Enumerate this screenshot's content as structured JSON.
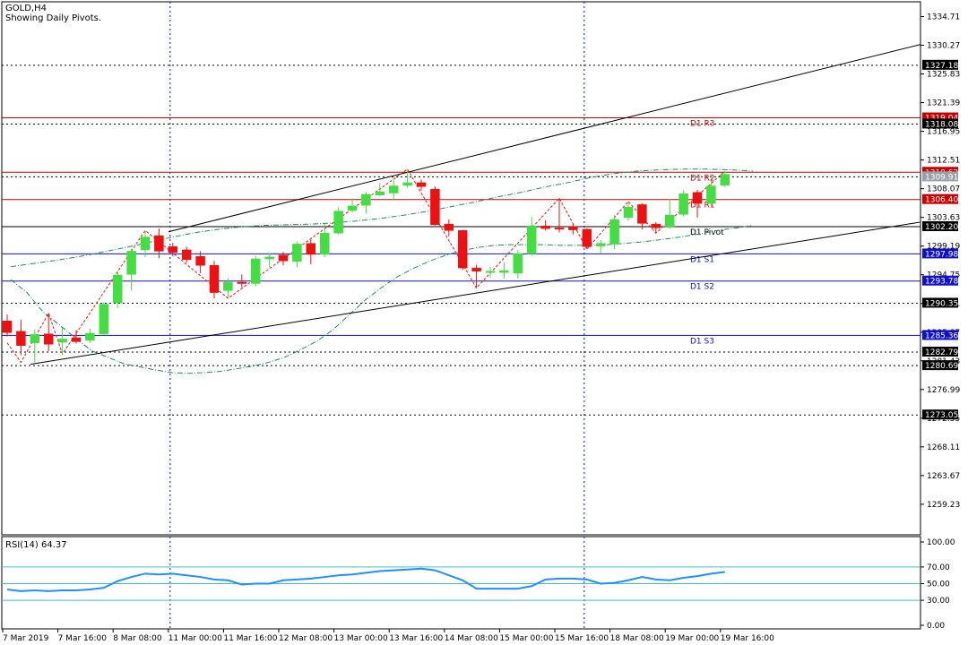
{
  "header": {
    "symbol": "GOLD,H4",
    "subtitle": "Showing Daily Pivots."
  },
  "rsi_panel": {
    "label": "RSI(14) 64.37"
  },
  "colors": {
    "bull": "#44dd44",
    "bear": "#ee1111",
    "pivot_line": "#000000",
    "support_line": "#1010cc",
    "resistance_line": "#cc0000",
    "rsi_line": "#1e90ff",
    "rsi_levels": "#40c0c0",
    "ma_line": "#228b66",
    "zigzag": "#ee1111"
  },
  "chart_data": [
    {
      "type": "candlestick",
      "title": "GOLD,H4",
      "ylim": [
        1254.5,
        1337.0
      ],
      "y_ticks": [
        "1334.71",
        "1330.27",
        "1325.83",
        "1321.39",
        "1316.95",
        "1312.51",
        "1308.07",
        "1303.63",
        "1299.19",
        "1294.75",
        "1290.31",
        "1285.87",
        "1281.43",
        "1276.99",
        "1272.55",
        "1268.11",
        "1263.67",
        "1259.23"
      ],
      "x_labels": [
        "7 Mar 2019",
        "7 Mar 16:00",
        "8 Mar 08:00",
        "11 Mar 00:00",
        "11 Mar 16:00",
        "12 Mar 08:00",
        "13 Mar 00:00",
        "13 Mar 16:00",
        "14 Mar 08:00",
        "15 Mar 00:00",
        "15 Mar 16:00",
        "18 Mar 08:00",
        "19 Mar 00:00",
        "19 Mar 16:00"
      ],
      "candles": [
        {
          "o": 1287.6,
          "h": 1288.6,
          "l": 1285.2,
          "c": 1285.8
        },
        {
          "o": 1286.0,
          "h": 1287.8,
          "l": 1282.3,
          "c": 1283.8
        },
        {
          "o": 1284.2,
          "h": 1286.3,
          "l": 1281.2,
          "c": 1285.5
        },
        {
          "o": 1285.6,
          "h": 1288.8,
          "l": 1282.9,
          "c": 1284.0
        },
        {
          "o": 1284.3,
          "h": 1286.5,
          "l": 1282.5,
          "c": 1284.8
        },
        {
          "o": 1285.0,
          "h": 1286.2,
          "l": 1284.1,
          "c": 1284.4
        },
        {
          "o": 1284.6,
          "h": 1286.4,
          "l": 1284.2,
          "c": 1285.7
        },
        {
          "o": 1285.6,
          "h": 1290.5,
          "l": 1285.5,
          "c": 1290.2
        },
        {
          "o": 1290.4,
          "h": 1295.3,
          "l": 1289.6,
          "c": 1294.7
        },
        {
          "o": 1294.8,
          "h": 1298.8,
          "l": 1292.3,
          "c": 1298.4
        },
        {
          "o": 1298.6,
          "h": 1301.6,
          "l": 1297.5,
          "c": 1300.6
        },
        {
          "o": 1300.8,
          "h": 1301.9,
          "l": 1297.3,
          "c": 1298.4
        },
        {
          "o": 1299.1,
          "h": 1299.7,
          "l": 1297.6,
          "c": 1298.2
        },
        {
          "o": 1298.6,
          "h": 1299.1,
          "l": 1296.6,
          "c": 1297.1
        },
        {
          "o": 1297.6,
          "h": 1298.4,
          "l": 1295.0,
          "c": 1296.2
        },
        {
          "o": 1296.2,
          "h": 1296.9,
          "l": 1291.1,
          "c": 1292.0
        },
        {
          "o": 1292.3,
          "h": 1294.2,
          "l": 1291.2,
          "c": 1293.6
        },
        {
          "o": 1293.6,
          "h": 1294.8,
          "l": 1292.8,
          "c": 1293.4
        },
        {
          "o": 1293.4,
          "h": 1297.7,
          "l": 1293.0,
          "c": 1297.2
        },
        {
          "o": 1297.2,
          "h": 1298.1,
          "l": 1295.9,
          "c": 1297.5
        },
        {
          "o": 1297.8,
          "h": 1298.3,
          "l": 1296.2,
          "c": 1296.9
        },
        {
          "o": 1296.8,
          "h": 1299.9,
          "l": 1295.9,
          "c": 1299.5
        },
        {
          "o": 1299.6,
          "h": 1300.2,
          "l": 1296.4,
          "c": 1297.9
        },
        {
          "o": 1297.9,
          "h": 1302.6,
          "l": 1297.5,
          "c": 1301.2
        },
        {
          "o": 1301.2,
          "h": 1305.2,
          "l": 1301.0,
          "c": 1304.6
        },
        {
          "o": 1304.7,
          "h": 1306.6,
          "l": 1304.4,
          "c": 1305.4
        },
        {
          "o": 1305.5,
          "h": 1307.6,
          "l": 1304.2,
          "c": 1307.2
        },
        {
          "o": 1307.1,
          "h": 1309.0,
          "l": 1306.9,
          "c": 1307.6
        },
        {
          "o": 1307.4,
          "h": 1309.4,
          "l": 1306.4,
          "c": 1308.5
        },
        {
          "o": 1308.6,
          "h": 1311.1,
          "l": 1308.2,
          "c": 1309.0
        },
        {
          "o": 1309.0,
          "h": 1309.5,
          "l": 1307.8,
          "c": 1308.4
        },
        {
          "o": 1308.0,
          "h": 1308.4,
          "l": 1302.4,
          "c": 1302.5
        },
        {
          "o": 1302.6,
          "h": 1303.3,
          "l": 1300.7,
          "c": 1301.6
        },
        {
          "o": 1301.6,
          "h": 1301.7,
          "l": 1295.5,
          "c": 1295.8
        },
        {
          "o": 1295.8,
          "h": 1296.3,
          "l": 1292.7,
          "c": 1295.3
        },
        {
          "o": 1295.3,
          "h": 1296.0,
          "l": 1294.3,
          "c": 1295.3
        },
        {
          "o": 1295.1,
          "h": 1296.7,
          "l": 1294.2,
          "c": 1295.4
        },
        {
          "o": 1295.0,
          "h": 1298.6,
          "l": 1294.2,
          "c": 1298.0
        },
        {
          "o": 1298.0,
          "h": 1303.7,
          "l": 1297.7,
          "c": 1302.3
        },
        {
          "o": 1302.3,
          "h": 1303.2,
          "l": 1301.6,
          "c": 1301.9
        },
        {
          "o": 1302.0,
          "h": 1306.6,
          "l": 1301.3,
          "c": 1301.8
        },
        {
          "o": 1302.2,
          "h": 1302.6,
          "l": 1301.0,
          "c": 1301.7
        },
        {
          "o": 1301.8,
          "h": 1301.9,
          "l": 1298.7,
          "c": 1299.1
        },
        {
          "o": 1299.2,
          "h": 1300.1,
          "l": 1298.1,
          "c": 1299.6
        },
        {
          "o": 1299.5,
          "h": 1304.0,
          "l": 1298.7,
          "c": 1303.3
        },
        {
          "o": 1303.6,
          "h": 1306.1,
          "l": 1303.1,
          "c": 1305.2
        },
        {
          "o": 1305.6,
          "h": 1305.8,
          "l": 1301.8,
          "c": 1302.7
        },
        {
          "o": 1302.6,
          "h": 1302.9,
          "l": 1301.2,
          "c": 1302.0
        },
        {
          "o": 1302.2,
          "h": 1306.5,
          "l": 1301.9,
          "c": 1304.0
        },
        {
          "o": 1304.1,
          "h": 1307.8,
          "l": 1303.8,
          "c": 1307.3
        },
        {
          "o": 1307.5,
          "h": 1307.9,
          "l": 1303.6,
          "c": 1305.8
        },
        {
          "o": 1305.8,
          "h": 1309.3,
          "l": 1305.4,
          "c": 1308.5
        },
        {
          "o": 1308.6,
          "h": 1310.8,
          "l": 1308.3,
          "c": 1310.3
        }
      ],
      "horizontal_levels": [
        {
          "label": "D1 R3",
          "value": 1319.04,
          "kind": "resistance"
        },
        {
          "label": "D1 R2",
          "value": 1310.62,
          "kind": "resistance"
        },
        {
          "label": "D1 R1",
          "value": 1306.4,
          "kind": "resistance"
        },
        {
          "label": "D1 Pivot",
          "value": 1302.2,
          "kind": "pivot"
        },
        {
          "label": "D1 S1",
          "value": 1297.98,
          "kind": "support"
        },
        {
          "label": "D1 S2",
          "value": 1293.78,
          "kind": "support"
        },
        {
          "label": "D1 S3",
          "value": 1285.36,
          "kind": "support"
        }
      ],
      "price_tags": [
        {
          "value": 1327.18,
          "text": "1327.18",
          "bg": "#000000"
        },
        {
          "value": 1319.04,
          "text": "1319.04",
          "bg": "#cc0000"
        },
        {
          "value": 1318.08,
          "text": "1318.08",
          "bg": "#000000"
        },
        {
          "value": 1310.62,
          "text": "1310.62",
          "bg": "#cc0000"
        },
        {
          "value": 1309.91,
          "text": "1309.91",
          "bg": "#9aa0a8"
        },
        {
          "value": 1306.4,
          "text": "1306.40",
          "bg": "#cc0000"
        },
        {
          "value": 1302.2,
          "text": "1302.20",
          "bg": "#000000"
        },
        {
          "value": 1297.98,
          "text": "1297.98",
          "bg": "#1010cc"
        },
        {
          "value": 1293.78,
          "text": "1293.78",
          "bg": "#1010cc"
        },
        {
          "value": 1290.35,
          "text": "1290.35",
          "bg": "#000000"
        },
        {
          "value": 1285.36,
          "text": "1285.36",
          "bg": "#1010cc"
        },
        {
          "value": 1282.79,
          "text": "1282.79",
          "bg": "#000000"
        },
        {
          "value": 1280.69,
          "text": "1280.69",
          "bg": "#000000"
        },
        {
          "value": 1273.05,
          "text": "1273.05",
          "bg": "#000000"
        }
      ],
      "dotted_levels": [
        1327.18,
        1318.08,
        1309.91,
        1290.35,
        1282.79,
        1280.69,
        1273.05
      ],
      "trendlines": [
        {
          "from": [
            0,
            1280.9
          ],
          "to": [
            62,
            1302.9
          ]
        },
        {
          "from": [
            10,
            1301.4
          ],
          "to": [
            62,
            1330.4
          ]
        }
      ],
      "vertical_separators": [
        12,
        42
      ],
      "moving_average": [
        1294,
        1292,
        1289,
        1287,
        1285,
        1283,
        1282,
        1281,
        1280.5,
        1280,
        1279.6,
        1279.5,
        1279.6,
        1279.8,
        1280.2,
        1280.6,
        1281.2,
        1282.0,
        1283.2,
        1284.5,
        1286.3,
        1288.6,
        1290.9,
        1292.8,
        1294.5,
        1295.8,
        1296.9,
        1297.8,
        1298.5,
        1299.0,
        1299.3,
        1299.4,
        1299.4,
        1299.4,
        1299.3,
        1299.3,
        1299.3,
        1299.4,
        1299.6,
        1299.8,
        1300.1,
        1300.4,
        1300.8,
        1301.2,
        1301.7,
        1302.0,
        1302.4
      ],
      "upper_band": [
        1296,
        1296.5,
        1297,
        1297.6,
        1298.3,
        1299.0,
        1299.8,
        1300.6,
        1301.3,
        1301.8,
        1302.2,
        1302.4,
        1302.5,
        1302.6,
        1302.8,
        1303.1,
        1303.5,
        1304.0,
        1304.6,
        1305.3,
        1306.0,
        1306.8,
        1307.5,
        1308.3,
        1309.0,
        1309.8,
        1310.4,
        1310.8,
        1311.0,
        1311.1,
        1311.1,
        1311.0,
        1310.8
      ],
      "zigzag": [
        [
          0,
          1284.2
        ],
        [
          1,
          1281.2
        ],
        [
          3,
          1288.8
        ],
        [
          4,
          1282.5
        ],
        [
          10,
          1301.6
        ],
        [
          16,
          1291.1
        ],
        [
          29,
          1311.1
        ],
        [
          34,
          1292.7
        ],
        [
          40,
          1306.6
        ],
        [
          42,
          1298.7
        ],
        [
          45,
          1306.1
        ],
        [
          47,
          1301.2
        ],
        [
          52,
          1310.8
        ]
      ]
    },
    {
      "type": "line",
      "title": "RSI(14) 64.37",
      "ylim": [
        0,
        100
      ],
      "y_ticks": [
        "100.00",
        "70.00",
        "50.00",
        "30.00",
        "0.00"
      ],
      "levels": [
        70,
        50,
        30
      ],
      "values": [
        43,
        41,
        42,
        41,
        42,
        42,
        43,
        45,
        53,
        58,
        62,
        61,
        62,
        60,
        58,
        55,
        54,
        49,
        50,
        50,
        54,
        55,
        56,
        58,
        60,
        61,
        63,
        65,
        66,
        67,
        68,
        66,
        60,
        54,
        44,
        44,
        44,
        44,
        47,
        55,
        56,
        56,
        55,
        50,
        51,
        54,
        58,
        55,
        54,
        57,
        59,
        62,
        64
      ]
    }
  ]
}
